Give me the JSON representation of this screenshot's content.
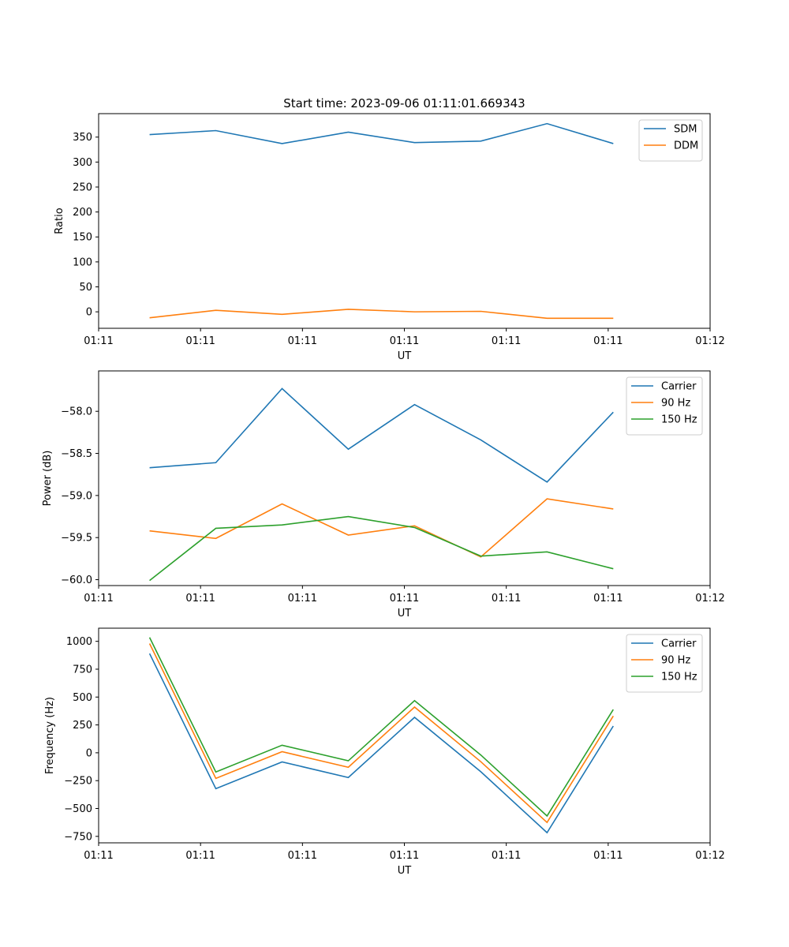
{
  "figure": {
    "title": "Start time: 2023-09-06 01:11:01.669343"
  },
  "chart_data": [
    {
      "type": "line",
      "title": "Start time: 2023-09-06 01:11:01.669343",
      "xlabel": "UT",
      "ylabel": "Ratio",
      "xlim": [
        0,
        12
      ],
      "ylim": [
        -33,
        397
      ],
      "x_tick_positions": [
        0,
        2,
        4,
        6,
        8,
        10,
        12
      ],
      "x_tick_labels": [
        "01:11",
        "01:11",
        "01:11",
        "01:11",
        "01:11",
        "01:11",
        "01:12"
      ],
      "y_ticks": [
        0,
        50,
        100,
        150,
        200,
        250,
        300,
        350
      ],
      "y_tick_labels": [
        "0",
        "50",
        "100",
        "150",
        "200",
        "250",
        "300",
        "350"
      ],
      "legend_position": "top-right",
      "x": [
        1,
        2.3,
        3.6,
        4.9,
        6.2,
        7.5,
        8.8,
        10.1
      ],
      "series": [
        {
          "name": "SDM",
          "color": "#1f77b4",
          "values": [
            355,
            363,
            337,
            360,
            339,
            342,
            377,
            337
          ]
        },
        {
          "name": "DDM",
          "color": "#ff7f0e",
          "values": [
            -12,
            3,
            -5,
            5,
            0,
            1,
            -13,
            -13
          ]
        }
      ]
    },
    {
      "type": "line",
      "title": "",
      "xlabel": "UT",
      "ylabel": "Power (dB)",
      "xlim": [
        0,
        12
      ],
      "ylim": [
        -60.07,
        -57.52
      ],
      "x_tick_positions": [
        0,
        2,
        4,
        6,
        8,
        10,
        12
      ],
      "x_tick_labels": [
        "01:11",
        "01:11",
        "01:11",
        "01:11",
        "01:11",
        "01:11",
        "01:12"
      ],
      "y_ticks": [
        -60.0,
        -59.5,
        -59.0,
        -58.5,
        -58.0
      ],
      "y_tick_labels": [
        "−60.0",
        "−59.5",
        "−59.0",
        "−58.5",
        "−58.0"
      ],
      "legend_position": "top-right",
      "x": [
        1,
        2.3,
        3.6,
        4.9,
        6.2,
        7.5,
        8.8,
        10.1
      ],
      "series": [
        {
          "name": "Carrier",
          "color": "#1f77b4",
          "values": [
            -58.67,
            -58.61,
            -57.73,
            -58.45,
            -57.92,
            -58.34,
            -58.84,
            -58.01
          ]
        },
        {
          "name": "90 Hz",
          "color": "#ff7f0e",
          "values": [
            -59.42,
            -59.51,
            -59.1,
            -59.47,
            -59.36,
            -59.73,
            -59.04,
            -59.16
          ]
        },
        {
          "name": "150 Hz",
          "color": "#2ca02c",
          "values": [
            -60.01,
            -59.39,
            -59.35,
            -59.25,
            -59.38,
            -59.72,
            -59.67,
            -59.87
          ]
        }
      ]
    },
    {
      "type": "line",
      "title": "",
      "xlabel": "UT",
      "ylabel": "Frequency (Hz)",
      "xlim": [
        0,
        12
      ],
      "ylim": [
        -808,
        1118
      ],
      "x_tick_positions": [
        0,
        2,
        4,
        6,
        8,
        10,
        12
      ],
      "x_tick_labels": [
        "01:11",
        "01:11",
        "01:11",
        "01:11",
        "01:11",
        "01:11",
        "01:12"
      ],
      "y_ticks": [
        -750,
        -500,
        -250,
        0,
        250,
        500,
        750,
        1000
      ],
      "y_tick_labels": [
        "−750",
        "−500",
        "−250",
        "0",
        "250",
        "500",
        "750",
        "1000"
      ],
      "legend_position": "top-right",
      "x": [
        1,
        2.3,
        3.6,
        4.9,
        6.2,
        7.5,
        8.8,
        10.1
      ],
      "series": [
        {
          "name": "Carrier",
          "color": "#1f77b4",
          "values": [
            890,
            -322,
            -82,
            -222,
            318,
            -170,
            -717,
            240
          ]
        },
        {
          "name": "90 Hz",
          "color": "#ff7f0e",
          "values": [
            980,
            -230,
            10,
            -130,
            410,
            -80,
            -625,
            330
          ]
        },
        {
          "name": "150 Hz",
          "color": "#2ca02c",
          "values": [
            1035,
            -172,
            68,
            -72,
            468,
            -20,
            -567,
            388
          ]
        }
      ]
    }
  ]
}
